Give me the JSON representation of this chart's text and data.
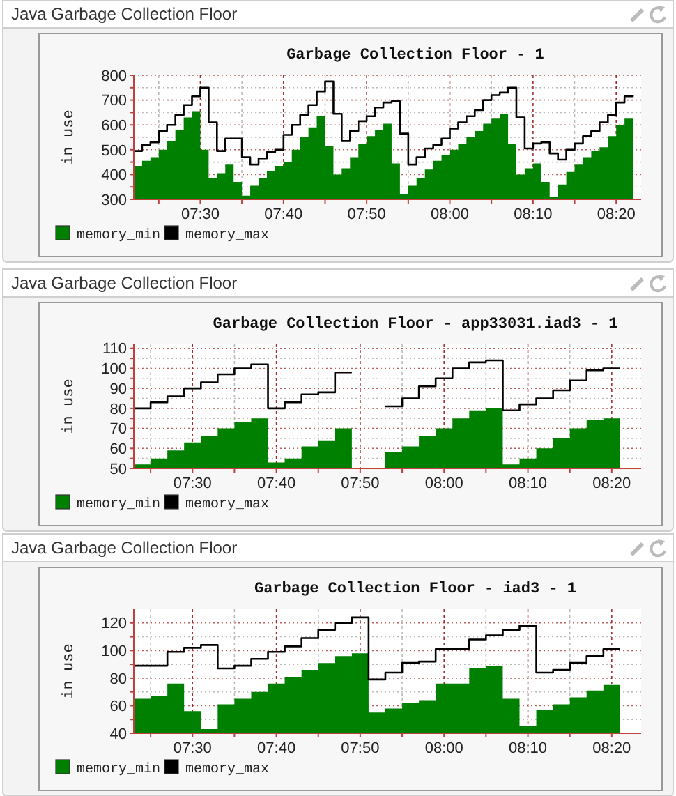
{
  "chart_data": [
    {
      "type": "step",
      "title": "Java Garbage Collection Floor",
      "subtitle": "Garbage Collection Floor - 1",
      "ylabel": "in use",
      "grid": true,
      "legend": "bottom left",
      "x": [
        7.3667,
        7.3833,
        7.4,
        7.4167,
        7.4333,
        7.45,
        7.4667,
        7.4833,
        7.5,
        7.5167,
        7.5333,
        7.55,
        7.5667,
        7.5833,
        7.6,
        7.6167,
        7.6333,
        7.65,
        7.6667,
        7.6833,
        7.7,
        7.7167,
        7.7333,
        7.75,
        7.7667,
        7.7833,
        7.8,
        7.8167,
        7.8333,
        7.85,
        7.8667,
        7.8833,
        7.9,
        7.9167,
        7.9333,
        7.95,
        7.9667,
        7.9833,
        8,
        8.0167,
        8.0333,
        8.05,
        8.0667,
        8.0833,
        8.1,
        8.1167,
        8.1333,
        8.15,
        8.1667,
        8.1833,
        8.2,
        8.2167,
        8.2333,
        8.25,
        8.2667,
        8.2833,
        8.3,
        8.3167,
        8.3333,
        8.35,
        8.3667
      ],
      "series": [
        {
          "name": "memory_min",
          "type": "area",
          "color": "#008000",
          "values": [
            435,
            455,
            470,
            500,
            535,
            580,
            630,
            655,
            500,
            385,
            405,
            440,
            370,
            315,
            355,
            385,
            415,
            435,
            450,
            500,
            550,
            590,
            635,
            515,
            400,
            425,
            470,
            525,
            555,
            580,
            605,
            445,
            320,
            355,
            385,
            420,
            455,
            480,
            500,
            525,
            550,
            575,
            605,
            625,
            645,
            525,
            400,
            425,
            445,
            370,
            310,
            360,
            410,
            440,
            470,
            495,
            510,
            555,
            600,
            625,
            640
          ]
        },
        {
          "name": "memory_max",
          "type": "step",
          "color": "#000000",
          "values": [
            495,
            520,
            530,
            575,
            600,
            640,
            680,
            715,
            750,
            610,
            495,
            545,
            545,
            470,
            440,
            465,
            490,
            500,
            560,
            600,
            640,
            680,
            735,
            775,
            645,
            535,
            575,
            615,
            635,
            670,
            690,
            695,
            565,
            440,
            470,
            505,
            520,
            545,
            585,
            610,
            635,
            660,
            700,
            720,
            730,
            750,
            630,
            505,
            525,
            530,
            485,
            460,
            500,
            525,
            555,
            575,
            610,
            640,
            690,
            715,
            720
          ]
        }
      ],
      "xlim": [
        7.3667,
        8.3833
      ],
      "xticks": [
        {
          "value": 7.4167,
          "label": null
        },
        {
          "value": 7.5,
          "label": "07:30"
        },
        {
          "value": 7.5833,
          "label": null
        },
        {
          "value": 7.6667,
          "label": "07:40"
        },
        {
          "value": 7.75,
          "label": null
        },
        {
          "value": 7.8333,
          "label": "07:50"
        },
        {
          "value": 7.9167,
          "label": null
        },
        {
          "value": 8,
          "label": "08:00"
        },
        {
          "value": 8.0833,
          "label": null
        },
        {
          "value": 8.1667,
          "label": "08:10"
        },
        {
          "value": 8.25,
          "label": null
        },
        {
          "value": 8.3333,
          "label": "08:20"
        }
      ],
      "ylim": [
        300,
        800
      ],
      "yticks": [
        300,
        {
          "value": 350,
          "label": null
        },
        400,
        {
          "value": 450,
          "label": null
        },
        500,
        {
          "value": 550,
          "label": null
        },
        600,
        {
          "value": 650,
          "label": null
        },
        700,
        {
          "value": 750,
          "label": null
        },
        800
      ]
    },
    {
      "type": "step",
      "title": "Java Garbage Collection Floor",
      "subtitle": "Garbage Collection Floor - app33031.iad3 - 1",
      "ylabel": "in use",
      "grid": true,
      "legend": "bottom left",
      "x": [
        7.3833,
        7.4167,
        7.45,
        7.4833,
        7.5167,
        7.55,
        7.5833,
        7.6167,
        7.65,
        7.6833,
        7.7167,
        7.75,
        7.7833,
        7.8167,
        7.85,
        7.8833,
        7.9167,
        7.95,
        7.9833,
        8.0167,
        8.05,
        8.0833,
        8.1167,
        8.15,
        8.1833,
        8.2167,
        8.25,
        8.2833,
        8.3167,
        8.35
      ],
      "series": [
        {
          "name": "memory_min",
          "type": "area",
          "color": "#008000",
          "values": [
            52,
            55,
            59,
            63,
            66,
            70,
            73,
            75,
            53,
            55,
            61,
            64,
            70,
            70,
            null,
            58,
            61,
            66,
            70,
            75,
            79,
            80,
            52,
            55,
            60,
            65,
            70,
            74,
            75,
            75
          ]
        },
        {
          "name": "memory_max",
          "type": "step",
          "color": "#000000",
          "values": [
            80,
            83,
            86,
            90,
            93,
            97,
            100,
            102,
            80,
            83,
            87,
            88,
            98,
            98,
            null,
            81,
            85,
            91,
            95,
            100,
            103,
            104,
            79,
            82,
            85,
            89,
            94,
            99,
            100,
            100
          ]
        }
      ],
      "xlim": [
        7.3833,
        8.3917
      ],
      "xticks": [
        {
          "value": 7.4167,
          "label": null
        },
        {
          "value": 7.5,
          "label": "07:30"
        },
        {
          "value": 7.5833,
          "label": null
        },
        {
          "value": 7.6667,
          "label": "07:40"
        },
        {
          "value": 7.75,
          "label": null
        },
        {
          "value": 7.8333,
          "label": "07:50"
        },
        {
          "value": 7.9167,
          "label": null
        },
        {
          "value": 8,
          "label": "08:00"
        },
        {
          "value": 8.0833,
          "label": null
        },
        {
          "value": 8.1667,
          "label": "08:10"
        },
        {
          "value": 8.25,
          "label": null
        },
        {
          "value": 8.3333,
          "label": "08:20"
        }
      ],
      "ylim": [
        50,
        112
      ],
      "yticks": [
        50,
        {
          "value": 55,
          "label": null
        },
        60,
        {
          "value": 65,
          "label": null
        },
        70,
        {
          "value": 75,
          "label": null
        },
        80,
        {
          "value": 85,
          "label": null
        },
        90,
        {
          "value": 95,
          "label": null
        },
        100,
        {
          "value": 105,
          "label": null
        },
        110
      ]
    },
    {
      "type": "step",
      "title": "Java Garbage Collection Floor",
      "subtitle": "Garbage Collection Floor - iad3 - 1",
      "ylabel": "in use",
      "grid": true,
      "legend": "bottom left",
      "x": [
        7.3833,
        7.4167,
        7.45,
        7.4833,
        7.5167,
        7.55,
        7.5833,
        7.6167,
        7.65,
        7.6833,
        7.7167,
        7.75,
        7.7833,
        7.8167,
        7.85,
        7.8833,
        7.9167,
        7.95,
        7.9833,
        8.0167,
        8.05,
        8.0833,
        8.1167,
        8.15,
        8.1833,
        8.2167,
        8.25,
        8.2833,
        8.3167,
        8.35
      ],
      "series": [
        {
          "name": "memory_min",
          "type": "area",
          "color": "#008000",
          "values": [
            65,
            67,
            76,
            56,
            43,
            61,
            65,
            70,
            76,
            81,
            86,
            91,
            96,
            98,
            55,
            58,
            62,
            64,
            76,
            76,
            87,
            89,
            65,
            45,
            57,
            61,
            66,
            71,
            75,
            75
          ]
        },
        {
          "name": "memory_max",
          "type": "step",
          "color": "#000000",
          "values": [
            89,
            89,
            99,
            102,
            104,
            87,
            89,
            94,
            99,
            103,
            109,
            115,
            120,
            124,
            79,
            84,
            91,
            92,
            101,
            101,
            108,
            111,
            115,
            118,
            84,
            86,
            91,
            96,
            101,
            101
          ]
        }
      ],
      "xlim": [
        7.3833,
        8.3917
      ],
      "xticks": [
        {
          "value": 7.4167,
          "label": null
        },
        {
          "value": 7.5,
          "label": "07:30"
        },
        {
          "value": 7.5833,
          "label": null
        },
        {
          "value": 7.6667,
          "label": "07:40"
        },
        {
          "value": 7.75,
          "label": null
        },
        {
          "value": 7.8333,
          "label": "07:50"
        },
        {
          "value": 7.9167,
          "label": null
        },
        {
          "value": 8,
          "label": "08:00"
        },
        {
          "value": 8.0833,
          "label": null
        },
        {
          "value": 8.1667,
          "label": "08:10"
        },
        {
          "value": 8.25,
          "label": null
        },
        {
          "value": 8.3333,
          "label": "08:20"
        }
      ],
      "ylim": [
        40,
        130
      ],
      "yticks": [
        40,
        {
          "value": 50,
          "label": null
        },
        60,
        {
          "value": 70,
          "label": null
        },
        80,
        {
          "value": 90,
          "label": null
        },
        100,
        {
          "value": 110,
          "label": null
        },
        120
      ]
    }
  ]
}
